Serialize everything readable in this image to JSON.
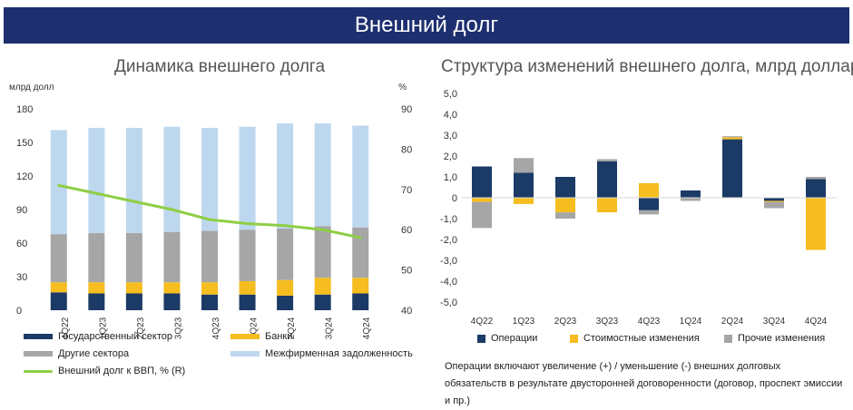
{
  "header": {
    "title": "Внешний долг"
  },
  "chart_data": [
    {
      "type": "bar",
      "title": "Динамика внешнего долга",
      "ylabel": "млрд долл",
      "y2label": "%",
      "categories": [
        "4Q22",
        "1Q23",
        "2Q23",
        "3Q23",
        "4Q23",
        "1Q24",
        "2Q24",
        "3Q24",
        "4Q24"
      ],
      "ylim": [
        0,
        180
      ],
      "y_ticks": [
        "0",
        "30",
        "60",
        "90",
        "120",
        "150",
        "180"
      ],
      "y2lim": [
        40,
        90
      ],
      "y2_ticks": [
        "40",
        "50",
        "60",
        "70",
        "80",
        "90"
      ],
      "stacked": true,
      "series": [
        {
          "name": "Государственный сектор",
          "color": "#1b3a66",
          "values": [
            16,
            15,
            15,
            15,
            14,
            14,
            13,
            14,
            15
          ]
        },
        {
          "name": "Банки",
          "color": "#f5bd1f",
          "values": [
            9,
            10,
            10,
            10,
            11,
            12,
            14,
            15,
            14
          ]
        },
        {
          "name": "Другие сектора",
          "color": "#a6a6a6",
          "values": [
            43,
            44,
            44,
            45,
            46,
            46,
            46,
            46,
            45
          ]
        },
        {
          "name": "Межфирменная задолженность",
          "color": "#bdd7ee",
          "values": [
            93,
            94,
            94,
            94,
            92,
            92,
            94,
            92,
            91
          ]
        }
      ],
      "line_series": {
        "name": "Внешний долг к ВВП, % (R)",
        "color": "#8fce45",
        "values": [
          71,
          69,
          67,
          65,
          62.5,
          61.5,
          61,
          60,
          58
        ]
      }
    },
    {
      "type": "bar",
      "title": "Структура изменений внешнего долга, млрд долларов",
      "categories": [
        "4Q22",
        "1Q23",
        "2Q23",
        "3Q23",
        "4Q23",
        "1Q24",
        "2Q24",
        "3Q24",
        "4Q24"
      ],
      "ylim": [
        -5,
        5
      ],
      "y_ticks": [
        "5,0",
        "4,0",
        "3,0",
        "2,0",
        "1,0",
        "0",
        "-1,0",
        "-2,0",
        "-3,0",
        "-4,0",
        "-5,0"
      ],
      "stacked": true,
      "series": [
        {
          "name": "Операции",
          "color": "#1b3a66",
          "values": [
            1.5,
            1.2,
            1.0,
            1.75,
            -0.6,
            0.35,
            2.8,
            -0.15,
            0.9
          ]
        },
        {
          "name": "Стоимостные изменения",
          "color": "#f5bd1f",
          "values": [
            -0.2,
            -0.3,
            -0.7,
            -0.7,
            0.7,
            0.0,
            0.1,
            -0.05,
            -2.5
          ]
        },
        {
          "name": "Прочие изменения",
          "color": "#a6a6a6",
          "values": [
            -1.25,
            0.7,
            -0.3,
            0.1,
            -0.2,
            -0.15,
            0.05,
            -0.3,
            0.1
          ]
        }
      ]
    }
  ],
  "note": "Операции включают увеличение (+) / уменьшение (-) внешних долговых обязательств в результате двусторонней договоренности (договор, проспект эмиссии и пр.)"
}
